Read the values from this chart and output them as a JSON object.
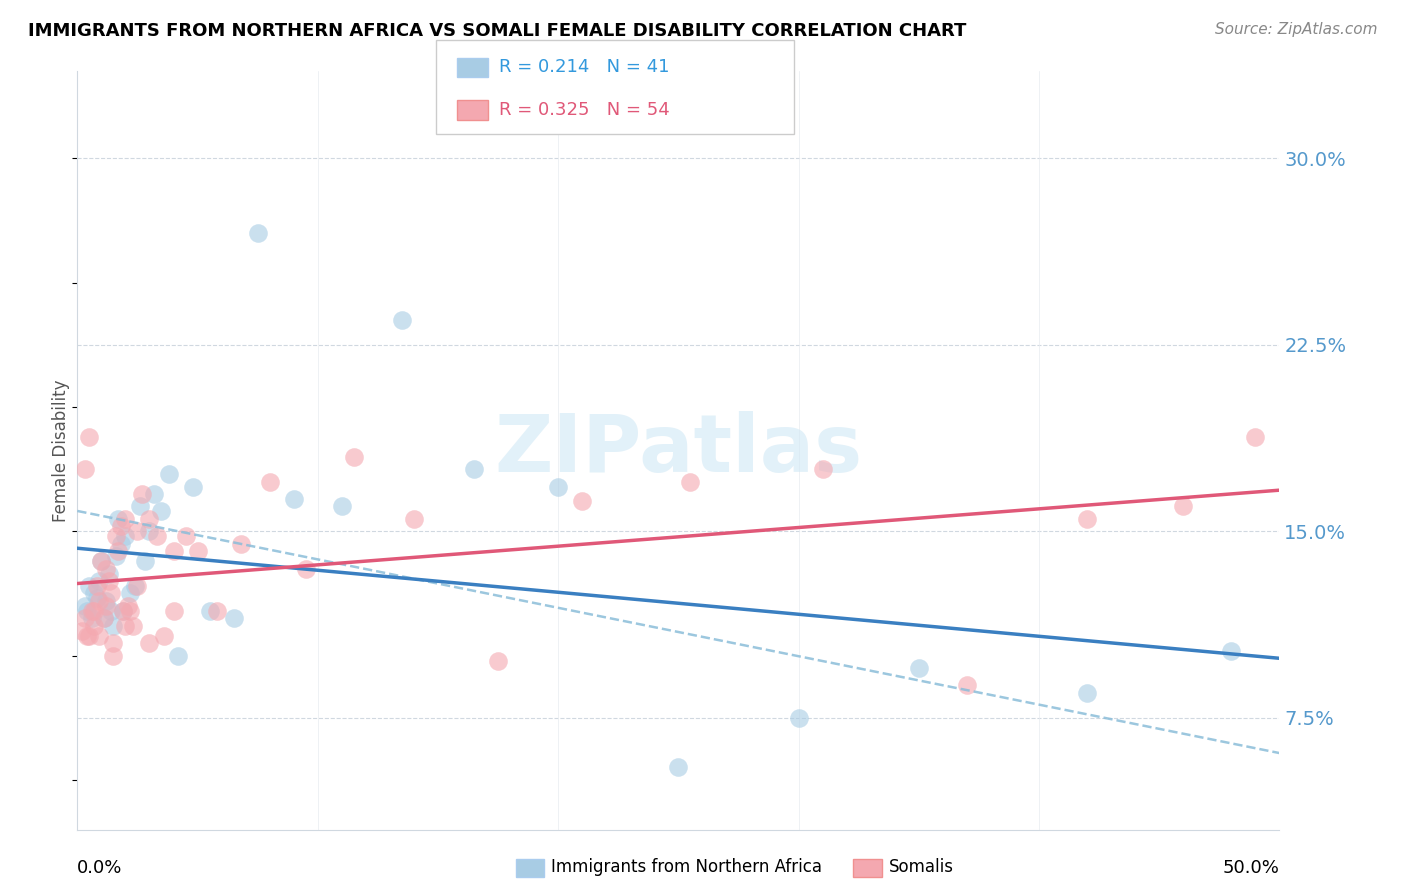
{
  "title": "IMMIGRANTS FROM NORTHERN AFRICA VS SOMALI FEMALE DISABILITY CORRELATION CHART",
  "source": "Source: ZipAtlas.com",
  "ylabel": "Female Disability",
  "yticks": [
    0.075,
    0.15,
    0.225,
    0.3
  ],
  "ytick_labels": [
    "7.5%",
    "15.0%",
    "22.5%",
    "30.0%"
  ],
  "xlim": [
    0.0,
    0.5
  ],
  "ylim": [
    0.03,
    0.335
  ],
  "R_blue": 0.214,
  "N_blue": 41,
  "R_pink": 0.325,
  "N_pink": 54,
  "blue_scatter_color": "#a8cce4",
  "pink_scatter_color": "#f4a8b0",
  "blue_line_color": "#3a7fc1",
  "pink_line_color": "#e05878",
  "dashed_line_color": "#8bbdd9",
  "watermark": "ZIPatlas",
  "legend_label_blue": "Immigrants from Northern Africa",
  "legend_label_pink": "Somalis",
  "blue_x": [
    0.003,
    0.004,
    0.005,
    0.006,
    0.007,
    0.008,
    0.009,
    0.01,
    0.011,
    0.012,
    0.013,
    0.014,
    0.015,
    0.016,
    0.017,
    0.018,
    0.019,
    0.02,
    0.022,
    0.024,
    0.026,
    0.028,
    0.03,
    0.032,
    0.035,
    0.038,
    0.042,
    0.048,
    0.055,
    0.065,
    0.075,
    0.09,
    0.11,
    0.135,
    0.165,
    0.2,
    0.25,
    0.3,
    0.35,
    0.42,
    0.48
  ],
  "blue_y": [
    0.12,
    0.118,
    0.128,
    0.115,
    0.125,
    0.123,
    0.13,
    0.138,
    0.115,
    0.122,
    0.133,
    0.118,
    0.112,
    0.14,
    0.155,
    0.145,
    0.118,
    0.148,
    0.125,
    0.128,
    0.16,
    0.138,
    0.15,
    0.165,
    0.158,
    0.173,
    0.1,
    0.168,
    0.118,
    0.115,
    0.27,
    0.163,
    0.16,
    0.235,
    0.175,
    0.168,
    0.055,
    0.075,
    0.095,
    0.085,
    0.102
  ],
  "pink_x": [
    0.002,
    0.003,
    0.004,
    0.005,
    0.006,
    0.007,
    0.008,
    0.009,
    0.01,
    0.011,
    0.012,
    0.013,
    0.014,
    0.015,
    0.016,
    0.017,
    0.018,
    0.019,
    0.02,
    0.021,
    0.022,
    0.023,
    0.025,
    0.027,
    0.03,
    0.033,
    0.036,
    0.04,
    0.045,
    0.05,
    0.058,
    0.068,
    0.08,
    0.095,
    0.115,
    0.14,
    0.175,
    0.21,
    0.255,
    0.31,
    0.37,
    0.42,
    0.46,
    0.49,
    0.003,
    0.005,
    0.007,
    0.009,
    0.012,
    0.015,
    0.02,
    0.025,
    0.03,
    0.04
  ],
  "pink_y": [
    0.11,
    0.175,
    0.108,
    0.188,
    0.118,
    0.112,
    0.128,
    0.122,
    0.138,
    0.115,
    0.135,
    0.13,
    0.125,
    0.105,
    0.148,
    0.142,
    0.152,
    0.118,
    0.155,
    0.12,
    0.118,
    0.112,
    0.15,
    0.165,
    0.155,
    0.148,
    0.108,
    0.142,
    0.148,
    0.142,
    0.118,
    0.145,
    0.17,
    0.135,
    0.18,
    0.155,
    0.098,
    0.162,
    0.17,
    0.175,
    0.088,
    0.155,
    0.16,
    0.188,
    0.115,
    0.108,
    0.118,
    0.108,
    0.12,
    0.1,
    0.112,
    0.128,
    0.105,
    0.118
  ]
}
